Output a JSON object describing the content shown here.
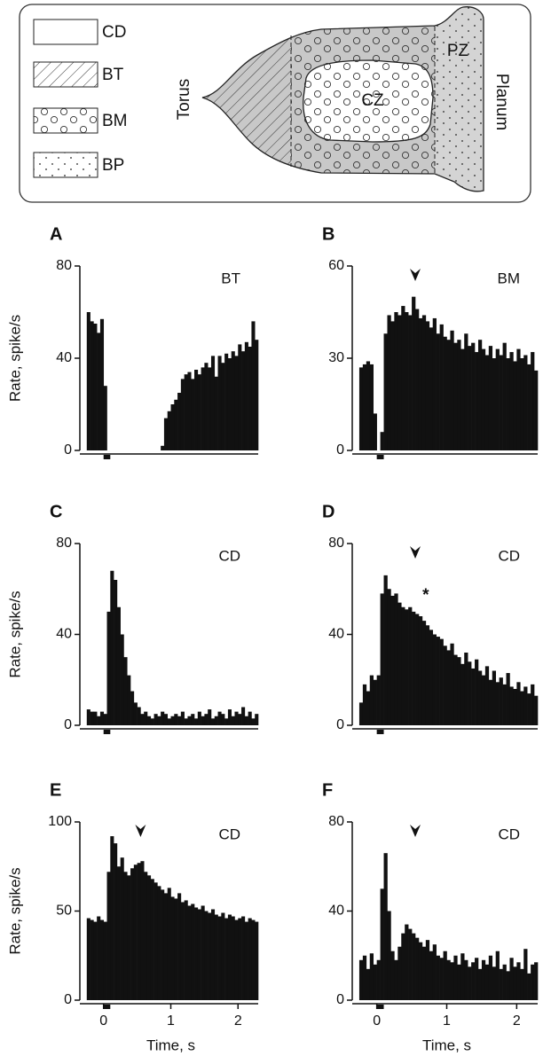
{
  "diagram": {
    "legend": [
      "CD",
      "BT",
      "BM",
      "BP"
    ],
    "labels": {
      "torus": "Torus",
      "cz": "CZ",
      "pz": "PZ",
      "planum": "Planum"
    }
  },
  "chart_data": [
    {
      "type": "histogram",
      "label": "A",
      "annotation": "BT",
      "ylabel": "Rate, spike/s",
      "color": "#111",
      "bins": [
        -0.25,
        -0.2,
        -0.15,
        -0.1,
        -0.05,
        0,
        0.05,
        0.1,
        0.15,
        0.2,
        0.25,
        0.3,
        0.35,
        0.4,
        0.45,
        0.5,
        0.55,
        0.6,
        0.65,
        0.7,
        0.75,
        0.8,
        0.85,
        0.9,
        0.95,
        1,
        1.05,
        1.1,
        1.15,
        1.2,
        1.25,
        1.3,
        1.35,
        1.4,
        1.45,
        1.5,
        1.55,
        1.6,
        1.65,
        1.7,
        1.75,
        1.8,
        1.85,
        1.9,
        1.95,
        2,
        2.05,
        2.1,
        2.15,
        2.2,
        2.25,
        2.3
      ],
      "values": [
        60,
        56,
        55,
        51,
        57,
        28,
        0,
        0,
        0,
        0,
        0,
        0,
        0,
        0,
        0,
        0,
        0,
        0,
        0,
        0,
        0,
        0,
        2,
        14,
        17,
        20,
        22,
        25,
        31,
        33,
        34,
        31,
        35,
        33,
        36,
        38,
        36,
        41,
        32,
        41,
        38,
        42,
        40,
        43,
        41,
        46,
        43,
        47,
        45,
        56,
        48
      ],
      "stimulus": [
        0,
        0.1
      ],
      "xlim": [
        -0.3,
        2.3
      ],
      "ylim": [
        0,
        80
      ],
      "yticks": [
        0,
        40,
        80
      ]
    },
    {
      "type": "histogram",
      "label": "B",
      "annotation": "BM",
      "color": "#111",
      "arrow": 0.55,
      "bins": [
        -0.25,
        -0.2,
        -0.15,
        -0.1,
        -0.05,
        0,
        0.05,
        0.1,
        0.15,
        0.2,
        0.25,
        0.3,
        0.35,
        0.4,
        0.45,
        0.5,
        0.55,
        0.6,
        0.65,
        0.7,
        0.75,
        0.8,
        0.85,
        0.9,
        0.95,
        1,
        1.05,
        1.1,
        1.15,
        1.2,
        1.25,
        1.3,
        1.35,
        1.4,
        1.45,
        1.5,
        1.55,
        1.6,
        1.65,
        1.7,
        1.75,
        1.8,
        1.85,
        1.9,
        1.95,
        2,
        2.05,
        2.1,
        2.15,
        2.2,
        2.25,
        2.3
      ],
      "values": [
        27,
        28,
        29,
        28,
        12,
        0,
        6,
        38,
        44,
        42,
        45,
        44,
        47,
        45,
        44,
        50,
        46,
        43,
        44,
        42,
        40,
        43,
        38,
        41,
        37,
        36,
        39,
        35,
        36,
        33,
        38,
        34,
        35,
        32,
        36,
        33,
        31,
        34,
        30,
        33,
        31,
        35,
        30,
        32,
        29,
        33,
        30,
        31,
        28,
        32,
        26
      ],
      "stimulus": [
        0,
        0.1
      ],
      "xlim": [
        -0.3,
        2.3
      ],
      "ylim": [
        0,
        60
      ],
      "yticks": [
        0,
        30,
        60
      ]
    },
    {
      "type": "histogram",
      "label": "C",
      "annotation": "CD",
      "ylabel": "Rate, spike/s",
      "color": "#111",
      "bins": [
        -0.25,
        -0.2,
        -0.15,
        -0.1,
        -0.05,
        0,
        0.05,
        0.1,
        0.15,
        0.2,
        0.25,
        0.3,
        0.35,
        0.4,
        0.45,
        0.5,
        0.55,
        0.6,
        0.65,
        0.7,
        0.75,
        0.8,
        0.85,
        0.9,
        0.95,
        1,
        1.05,
        1.1,
        1.15,
        1.2,
        1.25,
        1.3,
        1.35,
        1.4,
        1.45,
        1.5,
        1.55,
        1.6,
        1.65,
        1.7,
        1.75,
        1.8,
        1.85,
        1.9,
        1.95,
        2,
        2.05,
        2.1,
        2.15,
        2.2,
        2.25,
        2.3
      ],
      "values": [
        7,
        6,
        6,
        4,
        6,
        5,
        50,
        68,
        64,
        52,
        40,
        30,
        22,
        15,
        10,
        8,
        5,
        6,
        4,
        3,
        5,
        4,
        6,
        5,
        3,
        4,
        5,
        4,
        6,
        3,
        4,
        5,
        3,
        6,
        4,
        5,
        7,
        3,
        4,
        6,
        5,
        3,
        7,
        4,
        6,
        5,
        8,
        4,
        6,
        3,
        5
      ],
      "stimulus": [
        0,
        0.1
      ],
      "xlim": [
        -0.3,
        2.3
      ],
      "ylim": [
        0,
        80
      ],
      "yticks": [
        0,
        40,
        80
      ]
    },
    {
      "type": "histogram",
      "label": "D",
      "annotation": "CD",
      "color": "#111",
      "arrow": 0.55,
      "annotations": [
        {
          "text": "*",
          "x": 0.7,
          "y": 57
        }
      ],
      "bins": [
        -0.25,
        -0.2,
        -0.15,
        -0.1,
        -0.05,
        0,
        0.05,
        0.1,
        0.15,
        0.2,
        0.25,
        0.3,
        0.35,
        0.4,
        0.45,
        0.5,
        0.55,
        0.6,
        0.65,
        0.7,
        0.75,
        0.8,
        0.85,
        0.9,
        0.95,
        1,
        1.05,
        1.1,
        1.15,
        1.2,
        1.25,
        1.3,
        1.35,
        1.4,
        1.45,
        1.5,
        1.55,
        1.6,
        1.65,
        1.7,
        1.75,
        1.8,
        1.85,
        1.9,
        1.95,
        2,
        2.05,
        2.1,
        2.15,
        2.2,
        2.25,
        2.3
      ],
      "values": [
        10,
        18,
        15,
        22,
        20,
        22,
        58,
        66,
        60,
        57,
        58,
        54,
        52,
        51,
        52,
        50,
        49,
        48,
        46,
        44,
        42,
        40,
        39,
        38,
        35,
        33,
        36,
        31,
        30,
        27,
        32,
        28,
        25,
        29,
        24,
        22,
        26,
        20,
        24,
        19,
        21,
        18,
        23,
        17,
        16,
        19,
        15,
        17,
        14,
        18,
        13
      ],
      "stimulus": [
        0,
        0.1
      ],
      "xlim": [
        -0.3,
        2.3
      ],
      "ylim": [
        0,
        80
      ],
      "yticks": [
        0,
        40,
        80
      ]
    },
    {
      "type": "histogram",
      "label": "E",
      "annotation": "CD",
      "ylabel": "Rate, spike/s",
      "xlabel": "Time, s",
      "color": "#111",
      "arrow": 0.55,
      "bins": [
        -0.25,
        -0.2,
        -0.15,
        -0.1,
        -0.05,
        0,
        0.05,
        0.1,
        0.15,
        0.2,
        0.25,
        0.3,
        0.35,
        0.4,
        0.45,
        0.5,
        0.55,
        0.6,
        0.65,
        0.7,
        0.75,
        0.8,
        0.85,
        0.9,
        0.95,
        1,
        1.05,
        1.1,
        1.15,
        1.2,
        1.25,
        1.3,
        1.35,
        1.4,
        1.45,
        1.5,
        1.55,
        1.6,
        1.65,
        1.7,
        1.75,
        1.8,
        1.85,
        1.9,
        1.95,
        2,
        2.05,
        2.1,
        2.15,
        2.2,
        2.25,
        2.3
      ],
      "values": [
        46,
        45,
        44,
        47,
        45,
        44,
        72,
        92,
        88,
        75,
        80,
        72,
        70,
        74,
        76,
        77,
        78,
        72,
        70,
        68,
        66,
        64,
        62,
        60,
        63,
        58,
        57,
        60,
        55,
        56,
        53,
        54,
        52,
        51,
        53,
        50,
        49,
        51,
        48,
        47,
        49,
        46,
        48,
        47,
        45,
        46,
        47,
        44,
        46,
        45,
        44
      ],
      "stimulus": [
        0,
        0.1
      ],
      "xlim": [
        -0.3,
        2.3
      ],
      "ylim": [
        0,
        100
      ],
      "yticks": [
        0,
        50,
        100
      ],
      "xticks": [
        0,
        1,
        2
      ]
    },
    {
      "type": "histogram",
      "label": "F",
      "annotation": "CD",
      "xlabel": "Time, s",
      "color": "#111",
      "arrow": 0.55,
      "bins": [
        -0.25,
        -0.2,
        -0.15,
        -0.1,
        -0.05,
        0,
        0.05,
        0.1,
        0.15,
        0.2,
        0.25,
        0.3,
        0.35,
        0.4,
        0.45,
        0.5,
        0.55,
        0.6,
        0.65,
        0.7,
        0.75,
        0.8,
        0.85,
        0.9,
        0.95,
        1,
        1.05,
        1.1,
        1.15,
        1.2,
        1.25,
        1.3,
        1.35,
        1.4,
        1.45,
        1.5,
        1.55,
        1.6,
        1.65,
        1.7,
        1.75,
        1.8,
        1.85,
        1.9,
        1.95,
        2,
        2.05,
        2.1,
        2.15,
        2.2,
        2.25,
        2.3
      ],
      "values": [
        18,
        20,
        14,
        21,
        16,
        18,
        50,
        66,
        40,
        22,
        18,
        24,
        30,
        34,
        32,
        30,
        28,
        26,
        24,
        27,
        22,
        25,
        20,
        19,
        22,
        18,
        17,
        20,
        16,
        21,
        18,
        15,
        17,
        19,
        14,
        18,
        16,
        20,
        15,
        22,
        14,
        16,
        13,
        19,
        15,
        17,
        14,
        23,
        12,
        16,
        17
      ],
      "stimulus": [
        0,
        0.1
      ],
      "xlim": [
        -0.3,
        2.3
      ],
      "ylim": [
        0,
        80
      ],
      "yticks": [
        0,
        40,
        80
      ],
      "xticks": [
        0,
        1,
        2
      ]
    }
  ]
}
